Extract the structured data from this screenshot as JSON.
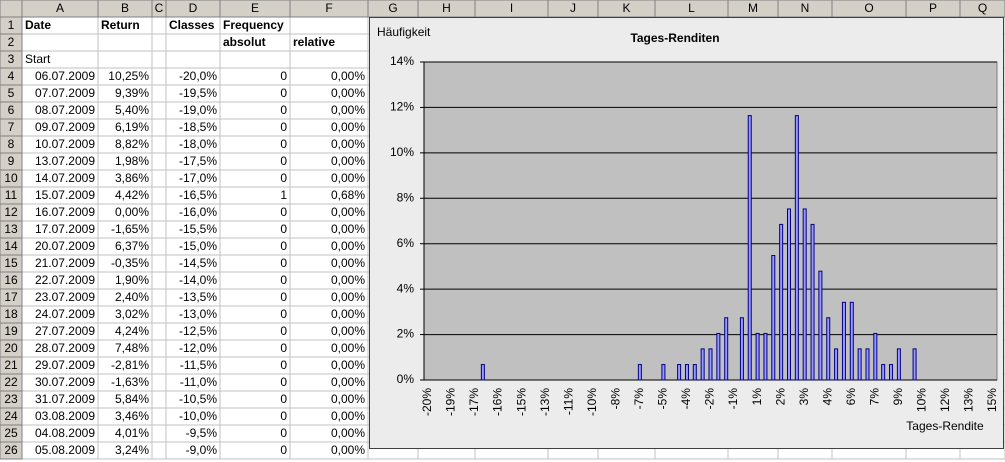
{
  "spreadsheet": {
    "columns": [
      "A",
      "B",
      "C",
      "D",
      "E",
      "F",
      "G",
      "H",
      "I",
      "J",
      "K",
      "L",
      "M",
      "N",
      "O",
      "P",
      "Q"
    ],
    "row_numbers": [
      "1",
      "2",
      "3",
      "4",
      "5",
      "6",
      "7",
      "8",
      "9",
      "10",
      "11",
      "12",
      "13",
      "14",
      "15",
      "16",
      "17",
      "18",
      "19",
      "20",
      "21",
      "22",
      "23",
      "24",
      "25",
      "26"
    ],
    "header": {
      "A1": "Date",
      "B1": "Return",
      "D1": "Classes",
      "E1": "Frequency",
      "E2": "absolut",
      "F2": "relative",
      "A3": "Start"
    },
    "rows": [
      [
        "06.07.2009",
        "10,25%",
        "-20,0%",
        "0",
        "0,00%"
      ],
      [
        "07.07.2009",
        "9,39%",
        "-19,5%",
        "0",
        "0,00%"
      ],
      [
        "08.07.2009",
        "5,40%",
        "-19,0%",
        "0",
        "0,00%"
      ],
      [
        "09.07.2009",
        "6,19%",
        "-18,5%",
        "0",
        "0,00%"
      ],
      [
        "10.07.2009",
        "8,82%",
        "-18,0%",
        "0",
        "0,00%"
      ],
      [
        "13.07.2009",
        "1,98%",
        "-17,5%",
        "0",
        "0,00%"
      ],
      [
        "14.07.2009",
        "3,86%",
        "-17,0%",
        "0",
        "0,00%"
      ],
      [
        "15.07.2009",
        "4,42%",
        "-16,5%",
        "1",
        "0,68%"
      ],
      [
        "16.07.2009",
        "0,00%",
        "-16,0%",
        "0",
        "0,00%"
      ],
      [
        "17.07.2009",
        "-1,65%",
        "-15,5%",
        "0",
        "0,00%"
      ],
      [
        "20.07.2009",
        "6,37%",
        "-15,0%",
        "0",
        "0,00%"
      ],
      [
        "21.07.2009",
        "-0,35%",
        "-14,5%",
        "0",
        "0,00%"
      ],
      [
        "22.07.2009",
        "1,90%",
        "-14,0%",
        "0",
        "0,00%"
      ],
      [
        "23.07.2009",
        "2,40%",
        "-13,5%",
        "0",
        "0,00%"
      ],
      [
        "24.07.2009",
        "3,02%",
        "-13,0%",
        "0",
        "0,00%"
      ],
      [
        "27.07.2009",
        "4,24%",
        "-12,5%",
        "0",
        "0,00%"
      ],
      [
        "28.07.2009",
        "7,48%",
        "-12,0%",
        "0",
        "0,00%"
      ],
      [
        "29.07.2009",
        "-2,81%",
        "-11,5%",
        "0",
        "0,00%"
      ],
      [
        "30.07.2009",
        "-1,63%",
        "-11,0%",
        "0",
        "0,00%"
      ],
      [
        "31.07.2009",
        "5,84%",
        "-10,5%",
        "0",
        "0,00%"
      ],
      [
        "03.08.2009",
        "3,46%",
        "-10,0%",
        "0",
        "0,00%"
      ],
      [
        "04.08.2009",
        "4,01%",
        "-9,5%",
        "0",
        "0,00%"
      ],
      [
        "05.08.2009",
        "3,24%",
        "-9,0%",
        "0",
        "0,00%"
      ]
    ]
  },
  "chart_data": {
    "type": "bar",
    "title": "Tages-Renditen",
    "y_label": "Häufigkeit",
    "x_label": "Tages-Rendite",
    "categories": [
      "-20%",
      null,
      null,
      "-19%",
      null,
      null,
      "-17%",
      null,
      null,
      "-16%",
      null,
      null,
      "-15%",
      null,
      null,
      "-13%",
      null,
      null,
      "-11%",
      null,
      null,
      "-10%",
      null,
      null,
      "-8%",
      null,
      null,
      "-7%",
      null,
      null,
      "-5%",
      null,
      null,
      "-4%",
      null,
      null,
      "-2%",
      null,
      null,
      "-1%",
      null,
      null,
      "1%",
      null,
      null,
      "2%",
      null,
      null,
      "3%",
      null,
      null,
      "4%",
      null,
      null,
      "6%",
      null,
      null,
      "7%",
      null,
      null,
      "9%",
      null,
      null,
      "10%",
      null,
      null,
      "12%",
      null,
      null,
      "13%",
      null,
      null,
      "15%"
    ],
    "values": [
      0,
      0,
      0,
      0,
      0,
      0,
      0,
      0.68,
      0,
      0,
      0,
      0,
      0,
      0,
      0,
      0,
      0,
      0,
      0,
      0,
      0,
      0,
      0,
      0,
      0,
      0,
      0,
      0.68,
      0,
      0,
      0.68,
      0,
      0.68,
      0.68,
      0.68,
      1.37,
      1.37,
      2.05,
      2.74,
      0,
      2.74,
      11.64,
      2.05,
      2.05,
      5.48,
      6.85,
      7.53,
      11.64,
      7.53,
      6.85,
      4.79,
      2.74,
      1.37,
      3.42,
      3.42,
      1.37,
      1.37,
      2.05,
      0.68,
      0.68,
      1.37,
      0,
      1.37,
      0,
      0,
      0,
      0,
      0,
      0,
      0,
      0,
      0,
      0
    ],
    "color": "#9999ff",
    "edge_color": "#000080",
    "ylim": [
      0,
      14
    ],
    "yticks": [
      {
        "value": 0,
        "label": "0%"
      },
      {
        "value": 2,
        "label": "2%"
      },
      {
        "value": 4,
        "label": "4%"
      },
      {
        "value": 6,
        "label": "6%"
      },
      {
        "value": 8,
        "label": "8%"
      },
      {
        "value": 10,
        "label": "10%"
      },
      {
        "value": 12,
        "label": "12%"
      },
      {
        "value": 14,
        "label": "14%"
      }
    ],
    "grid": true
  }
}
